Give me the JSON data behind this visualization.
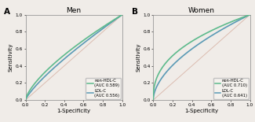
{
  "panel_A": {
    "title": "Men",
    "label": "A",
    "non_hdl": {
      "auc": 0.589,
      "color": "#5dba8c",
      "label": "non-HDL-C",
      "lw": 1.2
    },
    "ldl": {
      "auc": 0.556,
      "color": "#5a9ab5",
      "label": "LDL-C",
      "lw": 1.2
    }
  },
  "panel_B": {
    "title": "Women",
    "label": "B",
    "non_hdl": {
      "auc": 0.71,
      "color": "#5dba8c",
      "label": "non-HDL-C",
      "lw": 1.2
    },
    "ldl": {
      "auc": 0.641,
      "color": "#5a9ab5",
      "label": "LDL-C",
      "lw": 1.2
    }
  },
  "diag_color": "#dbbcb0",
  "bg_color": "#f0ece8",
  "axes_bg": "#f0ece8",
  "axis_fontsize": 5.0,
  "title_fontsize": 6.5,
  "legend_fontsize": 3.8,
  "tick_fontsize": 4.2,
  "label_fontsize": 7.5,
  "ticks": [
    0.0,
    0.2,
    0.4,
    0.6,
    0.8,
    1.0
  ],
  "tick_labels": [
    "0.0",
    "0.2",
    "0.4",
    "0.6",
    "0.8",
    "1.0"
  ]
}
